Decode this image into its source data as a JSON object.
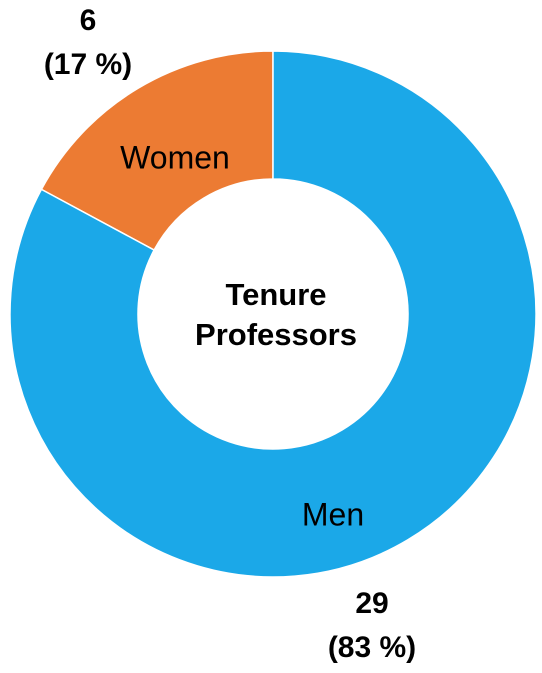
{
  "chart_data": {
    "type": "donut",
    "center_label": [
      "Tenure",
      "Professors"
    ],
    "categories": [
      "Men",
      "Women"
    ],
    "values": [
      29,
      6
    ],
    "percentages": [
      83,
      17
    ],
    "percentage_labels": [
      "(83 %)",
      "(17 %)"
    ],
    "colors": [
      "#1ba8e8",
      "#ec7b33"
    ]
  }
}
